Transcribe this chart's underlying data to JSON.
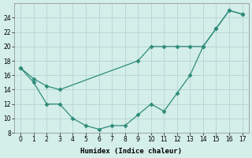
{
  "line1_x": [
    0,
    1,
    2,
    3,
    4,
    5,
    6,
    7,
    8,
    9,
    10,
    11,
    12,
    13,
    14,
    15,
    16,
    17
  ],
  "line1_y": [
    17,
    15,
    12,
    12,
    10,
    9,
    8.5,
    9,
    9,
    10.5,
    12,
    11,
    13.5,
    16,
    20,
    22.5,
    25,
    24.5
  ],
  "line2_x": [
    0,
    1,
    2,
    3,
    9,
    10,
    11,
    12,
    13,
    14,
    15,
    16,
    17
  ],
  "line2_y": [
    17,
    15.5,
    14.5,
    14,
    18,
    20,
    20,
    20,
    20,
    20,
    22.5,
    25,
    24.5
  ],
  "color": "#2e8b7a",
  "bg_color": "#d4eeea",
  "grid_color": "#b8d8d4",
  "xlabel": "Humidex (Indice chaleur)",
  "ylim": [
    8,
    26
  ],
  "xlim": [
    -0.5,
    17.5
  ],
  "yticks": [
    8,
    10,
    12,
    14,
    16,
    18,
    20,
    22,
    24
  ],
  "xticks": [
    0,
    1,
    2,
    3,
    4,
    5,
    6,
    7,
    8,
    9,
    10,
    11,
    12,
    13,
    14,
    15,
    16,
    17
  ]
}
